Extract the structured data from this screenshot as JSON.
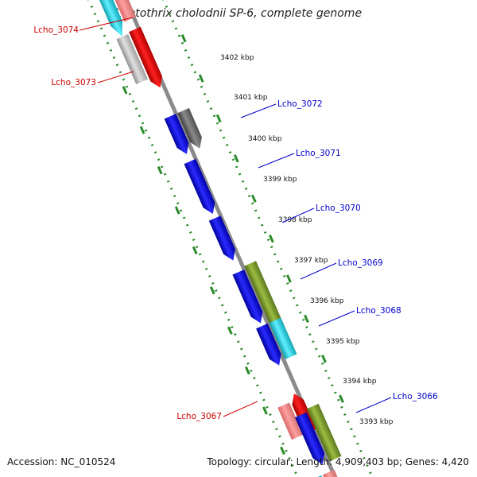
{
  "title": "Leptothrix cholodnii SP-6, complete genome",
  "footer": {
    "accession": "Accession: NC_010524",
    "summary": "Topology: circular; Length: 4,909,403 bp; Genes: 4,420"
  },
  "ticks": [
    "3402 kbp",
    "3401 kbp",
    "3400 kbp",
    "3399 kbp",
    "3398 kbp",
    "3397 kbp",
    "3396 kbp",
    "3395 kbp",
    "3394 kbp",
    "3393 kbp"
  ],
  "gene_labels": {
    "left": [
      "Lcho_3074",
      "Lcho_3073",
      "Lcho_3067"
    ],
    "right": [
      "Lcho_3072",
      "Lcho_3071",
      "Lcho_3070",
      "Lcho_3069",
      "Lcho_3068",
      "Lcho_3066"
    ]
  },
  "colors": {
    "backbone": "#8a8a8a",
    "guide": "#2a8a2a",
    "forward_cds": "#ff0000",
    "forward_pseudo": "#f08080",
    "reverse_cds": "#0000ff",
    "grey_cds": "#b8b8b8",
    "dark_grey_cds": "#6a6a6a",
    "cyan_cds": "#20c8d8",
    "olive_cds": "#7a9a2a",
    "left_label": "#cc0000",
    "right_label": "#0000cc"
  }
}
